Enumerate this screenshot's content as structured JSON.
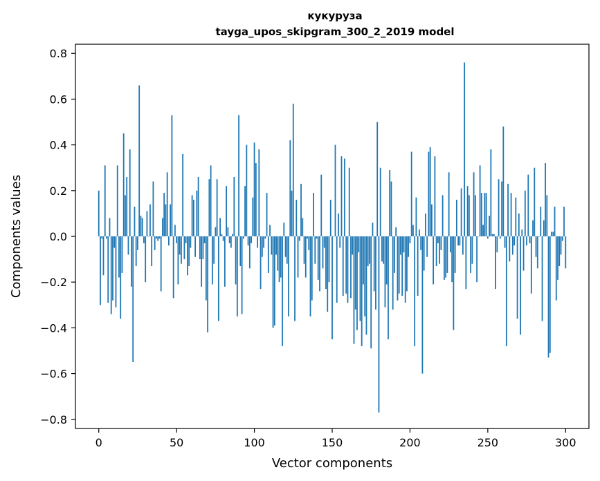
{
  "chart_data": {
    "type": "bar",
    "title_line1": "кукуруза",
    "title_line2": "tayga_upos_skipgram_300_2_2019 model",
    "xlabel": "Vector components",
    "ylabel": "Components values",
    "xlim": [
      -15,
      315
    ],
    "ylim": [
      -0.84,
      0.84
    ],
    "xticks": [
      0,
      50,
      100,
      150,
      200,
      250,
      300
    ],
    "xtick_labels": [
      "0",
      "50",
      "100",
      "150",
      "200",
      "250",
      "300"
    ],
    "yticks": [
      -0.8,
      -0.6,
      -0.4,
      -0.2,
      0.0,
      0.2,
      0.4,
      0.6,
      0.8
    ],
    "ytick_labels": [
      "−0.8",
      "−0.6",
      "−0.4",
      "−0.2",
      "0.0",
      "0.2",
      "0.4",
      "0.6",
      "0.8"
    ],
    "bar_color": "#1f77b4",
    "values": [
      0.2,
      -0.3,
      -0.01,
      -0.17,
      0.31,
      -0.01,
      -0.29,
      0.08,
      -0.34,
      -0.28,
      -0.05,
      -0.31,
      0.31,
      -0.18,
      -0.36,
      -0.16,
      0.45,
      0.18,
      0.26,
      -0.08,
      0.38,
      -0.22,
      -0.55,
      0.13,
      -0.13,
      -0.06,
      0.66,
      0.09,
      0.08,
      -0.03,
      -0.2,
      0.11,
      0.0,
      0.14,
      -0.13,
      0.24,
      -0.06,
      -0.01,
      -0.02,
      -0.01,
      -0.24,
      0.08,
      0.19,
      0.14,
      0.28,
      -0.04,
      0.14,
      0.53,
      -0.27,
      0.05,
      -0.03,
      -0.21,
      -0.08,
      -0.12,
      0.36,
      -0.1,
      -0.03,
      -0.17,
      -0.13,
      -0.05,
      0.18,
      0.16,
      -0.09,
      0.2,
      0.26,
      -0.1,
      -0.22,
      -0.1,
      -0.03,
      -0.28,
      -0.42,
      0.25,
      0.31,
      -0.21,
      -0.12,
      0.04,
      0.25,
      -0.37,
      0.08,
      0.01,
      -0.02,
      -0.22,
      0.22,
      0.04,
      -0.03,
      -0.05,
      0.01,
      0.26,
      -0.21,
      -0.35,
      0.53,
      -0.13,
      -0.34,
      -0.01,
      0.22,
      0.4,
      -0.04,
      -0.14,
      -0.03,
      0.17,
      0.41,
      0.32,
      -0.05,
      0.38,
      -0.23,
      -0.09,
      -0.05,
      -0.01,
      0.19,
      -0.16,
      0.05,
      -0.08,
      -0.4,
      -0.39,
      -0.08,
      -0.15,
      -0.2,
      -0.18,
      -0.48,
      0.06,
      -0.09,
      -0.12,
      -0.35,
      0.42,
      0.2,
      0.58,
      -0.37,
      0.16,
      -0.18,
      -0.02,
      0.23,
      0.08,
      -0.12,
      -0.18,
      -0.01,
      -0.06,
      -0.35,
      -0.28,
      0.19,
      -0.12,
      -0.01,
      -0.19,
      -0.24,
      0.27,
      -0.14,
      -0.05,
      -0.23,
      -0.33,
      -0.2,
      0.16,
      -0.45,
      0.0,
      0.4,
      -0.29,
      0.1,
      -0.05,
      0.35,
      -0.26,
      0.34,
      -0.25,
      -0.29,
      0.3,
      -0.27,
      -0.08,
      -0.47,
      -0.32,
      -0.41,
      -0.07,
      -0.37,
      -0.48,
      -0.21,
      -0.35,
      -0.43,
      -0.13,
      -0.12,
      -0.49,
      0.06,
      -0.24,
      -0.32,
      0.5,
      -0.77,
      0.3,
      -0.11,
      -0.12,
      -0.31,
      -0.21,
      -0.45,
      0.29,
      0.24,
      -0.32,
      -0.16,
      0.04,
      -0.28,
      -0.25,
      -0.08,
      -0.26,
      -0.07,
      -0.29,
      -0.24,
      -0.09,
      -0.03,
      0.37,
      0.05,
      -0.48,
      0.17,
      -0.26,
      0.03,
      -0.06,
      -0.6,
      -0.15,
      0.1,
      -0.09,
      0.37,
      0.39,
      0.14,
      -0.21,
      0.35,
      -0.13,
      -0.03,
      -0.12,
      -0.06,
      0.18,
      -0.19,
      -0.18,
      -0.16,
      0.28,
      -0.07,
      -0.2,
      -0.41,
      -0.16,
      0.16,
      -0.04,
      -0.04,
      0.21,
      -0.08,
      0.76,
      -0.23,
      0.22,
      0.18,
      -0.16,
      -0.12,
      0.28,
      0.18,
      -0.2,
      0.0,
      0.31,
      0.19,
      0.05,
      0.19,
      0.19,
      -0.01,
      0.09,
      0.38,
      0.01,
      0.01,
      -0.23,
      -0.07,
      0.25,
      -0.01,
      0.24,
      0.48,
      -0.05,
      -0.48,
      0.23,
      -0.11,
      0.19,
      -0.08,
      -0.04,
      0.17,
      -0.36,
      0.1,
      -0.43,
      0.03,
      -0.15,
      0.2,
      -0.04,
      0.27,
      -0.03,
      -0.25,
      0.07,
      0.3,
      -0.09,
      -0.14,
      0.0,
      0.13,
      -0.37,
      0.07,
      0.32,
      0.18,
      -0.53,
      -0.51,
      0.02,
      0.02,
      0.13,
      -0.28,
      -0.19,
      -0.13,
      -0.08,
      -0.02,
      0.13,
      -0.14
    ]
  }
}
